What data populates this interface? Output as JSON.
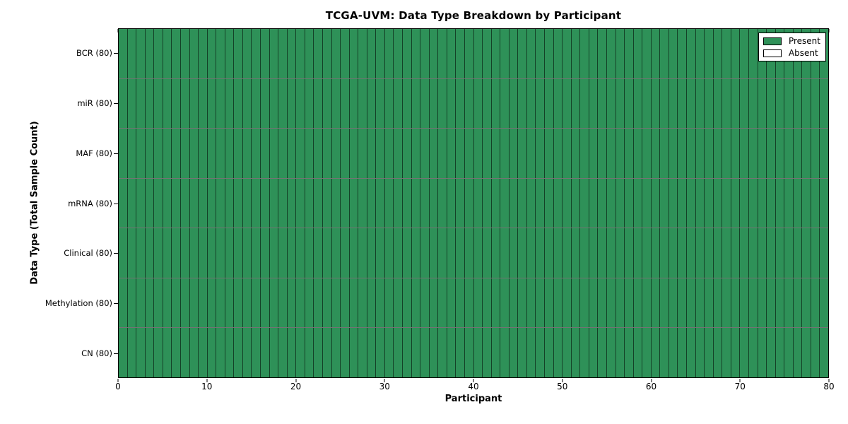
{
  "chart_data": {
    "type": "heatmap",
    "title": "TCGA-UVM: Data Type Breakdown by Participant",
    "xlabel": "Participant",
    "ylabel": "Data Type (Total Sample Count)",
    "x_range": [
      0,
      80
    ],
    "x_ticks": [
      0,
      10,
      20,
      30,
      40,
      50,
      60,
      70,
      80
    ],
    "n_participants": 80,
    "rows": [
      {
        "label": "BCR (80)",
        "data_type": "BCR",
        "total_samples": 80,
        "present": 80,
        "absent": 0
      },
      {
        "label": "miR (80)",
        "data_type": "miR",
        "total_samples": 80,
        "present": 80,
        "absent": 0
      },
      {
        "label": "MAF (80)",
        "data_type": "MAF",
        "total_samples": 80,
        "present": 80,
        "absent": 0
      },
      {
        "label": "mRNA (80)",
        "data_type": "mRNA",
        "total_samples": 80,
        "present": 80,
        "absent": 0
      },
      {
        "label": "Clinical (80)",
        "data_type": "Clinical",
        "total_samples": 80,
        "present": 80,
        "absent": 0
      },
      {
        "label": "Methylation (80)",
        "data_type": "Methylation",
        "total_samples": 80,
        "present": 80,
        "absent": 0
      },
      {
        "label": "CN (80)",
        "data_type": "CN",
        "total_samples": 80,
        "present": 80,
        "absent": 0
      }
    ],
    "legend": {
      "position": "upper right",
      "entries": [
        {
          "label": "Present",
          "color": "#2e9158"
        },
        {
          "label": "Absent",
          "color": "#ffffff"
        }
      ]
    },
    "colors": {
      "present": "#2e9158",
      "absent": "#ffffff",
      "cell_edge": "rgba(0,0,0,0.55)",
      "spine": "#000000"
    },
    "grid": "cell-borders",
    "legend_labels": [
      "Present",
      "Absent"
    ]
  }
}
